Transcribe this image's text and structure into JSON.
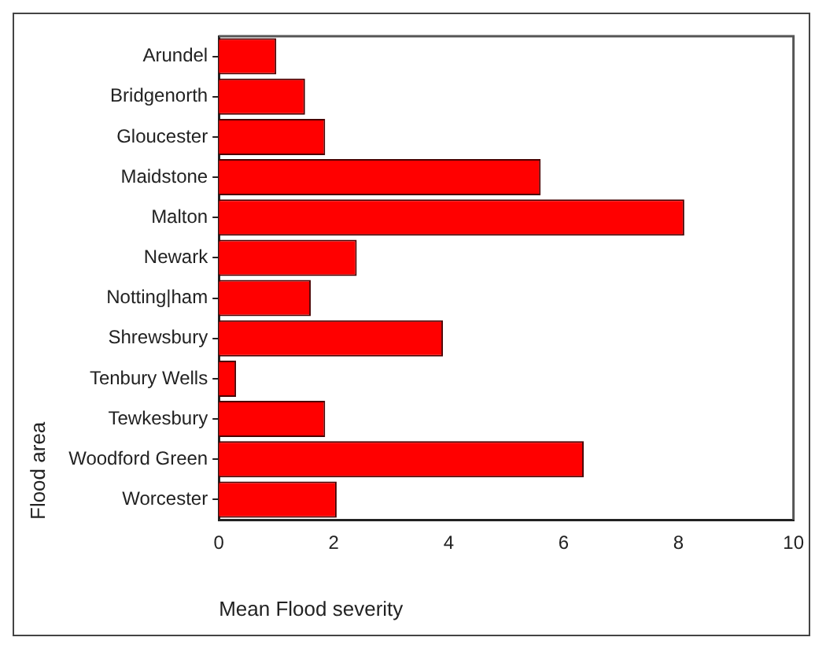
{
  "chart_data": {
    "type": "bar",
    "orientation": "horizontal",
    "xlabel": "Mean Flood severity",
    "ylabel": "Flood area",
    "categories": [
      "Arundel",
      "Bridgenorth",
      "Gloucester",
      "Maidstone",
      "Malton",
      "Newark",
      "Notting|ham",
      "Shrewsbury",
      "Tenbury Wells",
      "Tewkesbury",
      "Woodford Green",
      "Worcester"
    ],
    "values": [
      1.0,
      1.5,
      1.85,
      5.6,
      8.1,
      2.4,
      1.6,
      3.9,
      0.3,
      1.85,
      6.35,
      2.05
    ],
    "color": "#ff0000",
    "xlim": [
      0,
      10
    ],
    "xticks": [
      0,
      2,
      4,
      6,
      8,
      10
    ],
    "grid": false,
    "legend": false
  }
}
